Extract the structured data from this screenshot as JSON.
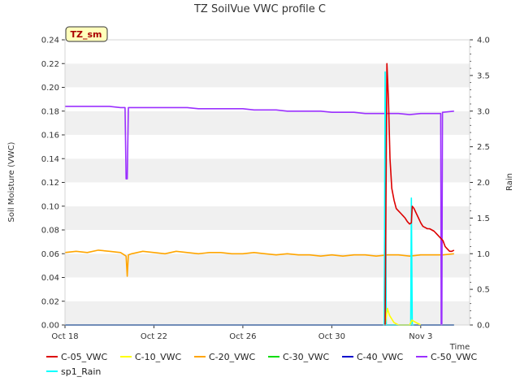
{
  "chart_data": {
    "type": "line",
    "title": "TZ SoilVue VWC profile C",
    "badge": "TZ_sm",
    "xlabel": "Time",
    "ylabel": "Soil Moisture (VWC)",
    "y2label": "Rain",
    "xlim": [
      0,
      18.2
    ],
    "ylim": [
      0.0,
      0.24
    ],
    "y2lim": [
      0.0,
      4.0
    ],
    "x_tick_values": [
      0,
      4,
      8,
      12,
      16
    ],
    "x_tick_labels": [
      "Oct 18",
      "Oct 22",
      "Oct 26",
      "Oct 30",
      "Nov 3"
    ],
    "y_ticks": [
      "0.00",
      "0.02",
      "0.04",
      "0.06",
      "0.08",
      "0.10",
      "0.12",
      "0.14",
      "0.16",
      "0.18",
      "0.20",
      "0.22",
      "0.24"
    ],
    "y2_ticks": [
      "0.0",
      "0.5",
      "1.0",
      "1.5",
      "2.0",
      "2.5",
      "3.0",
      "3.5",
      "4.0"
    ],
    "legend_position": "bottom",
    "series": [
      {
        "name": "C-05_VWC",
        "color": "#dd0000",
        "axis": "left",
        "x": [
          14.4,
          14.48,
          14.55,
          14.62,
          14.7,
          14.8,
          14.9,
          15.0,
          15.1,
          15.2,
          15.3,
          15.4,
          15.5,
          15.58,
          15.62,
          15.7,
          15.8,
          15.9,
          16.0,
          16.1,
          16.2,
          16.3,
          16.4,
          16.5,
          16.6,
          16.7,
          16.8,
          16.9,
          17.0,
          17.1,
          17.2,
          17.3,
          17.4,
          17.5
        ],
        "values": [
          0.0,
          0.22,
          0.19,
          0.14,
          0.115,
          0.105,
          0.098,
          0.096,
          0.094,
          0.092,
          0.09,
          0.087,
          0.085,
          0.086,
          0.1,
          0.098,
          0.094,
          0.09,
          0.086,
          0.083,
          0.082,
          0.081,
          0.081,
          0.08,
          0.079,
          0.077,
          0.075,
          0.073,
          0.071,
          0.066,
          0.064,
          0.062,
          0.062,
          0.063
        ]
      },
      {
        "name": "C-10_VWC",
        "color": "#ffff00",
        "axis": "left",
        "x": [
          14.4,
          14.5,
          14.55,
          14.6,
          14.7,
          14.8,
          14.9,
          15.0,
          15.5,
          15.6,
          15.7,
          15.8,
          15.9,
          16.0
        ],
        "values": [
          0.0,
          0.014,
          0.011,
          0.008,
          0.005,
          0.002,
          0.001,
          0.0,
          0.0,
          0.004,
          0.003,
          0.002,
          0.001,
          0.0
        ]
      },
      {
        "name": "C-20_VWC",
        "color": "#ffa500",
        "axis": "left",
        "x": [
          0.0,
          0.5,
          1.0,
          1.5,
          2.0,
          2.5,
          2.75,
          2.8,
          2.85,
          3.0,
          3.5,
          4.0,
          4.5,
          5.0,
          5.5,
          6.0,
          6.5,
          7.0,
          7.5,
          8.0,
          8.5,
          9.0,
          9.5,
          10.0,
          10.5,
          11.0,
          11.5,
          12.0,
          12.5,
          13.0,
          13.5,
          14.0,
          14.5,
          15.0,
          15.5,
          16.0,
          16.5,
          17.0,
          17.5
        ],
        "values": [
          0.061,
          0.062,
          0.061,
          0.063,
          0.062,
          0.061,
          0.058,
          0.041,
          0.059,
          0.06,
          0.062,
          0.061,
          0.06,
          0.062,
          0.061,
          0.06,
          0.061,
          0.061,
          0.06,
          0.06,
          0.061,
          0.06,
          0.059,
          0.06,
          0.059,
          0.059,
          0.058,
          0.059,
          0.058,
          0.059,
          0.059,
          0.058,
          0.059,
          0.059,
          0.058,
          0.059,
          0.059,
          0.059,
          0.06
        ]
      },
      {
        "name": "C-30_VWC",
        "color": "#00dd00",
        "axis": "left",
        "x": [
          0.0,
          17.5
        ],
        "values": [
          0.0,
          0.0
        ]
      },
      {
        "name": "C-40_VWC",
        "color": "#0000cc",
        "axis": "left",
        "x": [
          0.0,
          17.5
        ],
        "values": [
          0.0,
          0.0
        ]
      },
      {
        "name": "C-50_VWC",
        "color": "#9b30ff",
        "axis": "left",
        "x": [
          0.0,
          0.5,
          1.0,
          1.5,
          2.0,
          2.5,
          2.7,
          2.75,
          2.8,
          2.85,
          3.0,
          3.5,
          4.0,
          4.5,
          5.0,
          5.5,
          6.0,
          6.5,
          7.0,
          7.5,
          8.0,
          8.5,
          9.0,
          9.5,
          10.0,
          10.5,
          11.0,
          11.5,
          12.0,
          12.5,
          13.0,
          13.5,
          14.0,
          14.5,
          15.0,
          15.5,
          16.0,
          16.5,
          16.9,
          16.92,
          16.95,
          16.98,
          17.0,
          17.5
        ],
        "values": [
          0.184,
          0.184,
          0.184,
          0.184,
          0.184,
          0.183,
          0.183,
          0.123,
          0.123,
          0.183,
          0.183,
          0.183,
          0.183,
          0.183,
          0.183,
          0.183,
          0.182,
          0.182,
          0.182,
          0.182,
          0.182,
          0.181,
          0.181,
          0.181,
          0.18,
          0.18,
          0.18,
          0.18,
          0.179,
          0.179,
          0.179,
          0.178,
          0.178,
          0.178,
          0.178,
          0.177,
          0.178,
          0.178,
          0.178,
          0.0,
          0.0,
          0.179,
          0.179,
          0.18
        ]
      },
      {
        "name": "sp1_Rain",
        "color": "#00ffff",
        "axis": "right",
        "x": [
          14.3,
          14.36,
          14.4,
          14.45,
          14.5,
          15.5,
          15.55,
          15.58,
          15.62,
          15.66,
          15.7
        ],
        "values": [
          0.0,
          0.0,
          3.55,
          0.0,
          0.0,
          0.0,
          0.0,
          1.78,
          0.0,
          0.0,
          0.0
        ]
      }
    ]
  }
}
